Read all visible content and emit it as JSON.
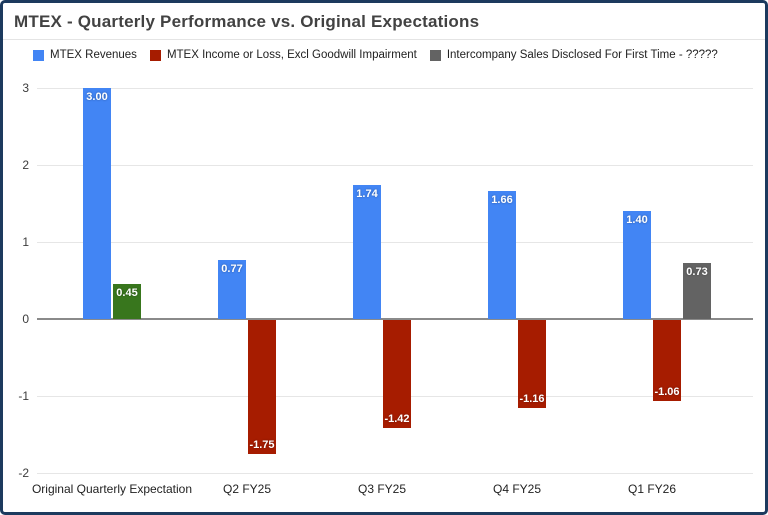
{
  "frame": {
    "border_color": "#1c3a5e",
    "background_color": "#ffffff"
  },
  "chart_data": {
    "type": "bar",
    "title": "MTEX - Quarterly Performance vs. Original Expectations",
    "xlabel": "",
    "ylabel": "",
    "ylim": [
      -2,
      3
    ],
    "yticks": [
      3,
      2,
      1,
      0,
      -1,
      -2
    ],
    "grid": true,
    "legend_position": "top",
    "categories": [
      "Original Quarterly Expectation",
      "Q2 FY25",
      "Q3 FY25",
      "Q4 FY25",
      "Q1 FY26"
    ],
    "series": [
      {
        "name": "MTEX Revenues",
        "color": "#4285f4",
        "values": [
          3.0,
          0.77,
          1.74,
          1.66,
          1.4
        ],
        "labels": [
          "3.00",
          "0.77",
          "1.74",
          "1.66",
          "1.40"
        ]
      },
      {
        "name": "MTEX Income or Loss, Excl Goodwill Impairment",
        "color": "#a61c00",
        "point_colors": [
          "#38761d",
          null,
          null,
          null,
          null
        ],
        "values": [
          0.45,
          -1.75,
          -1.42,
          -1.16,
          -1.06
        ],
        "labels": [
          "0.45",
          "-1.75",
          "-1.42",
          "-1.16",
          "-1.06"
        ]
      },
      {
        "name": "Intercompany Sales Disclosed For First Time - ?????",
        "color": "#636363",
        "values": [
          null,
          null,
          null,
          null,
          0.73
        ],
        "labels": [
          null,
          null,
          null,
          null,
          "0.73"
        ]
      }
    ]
  }
}
